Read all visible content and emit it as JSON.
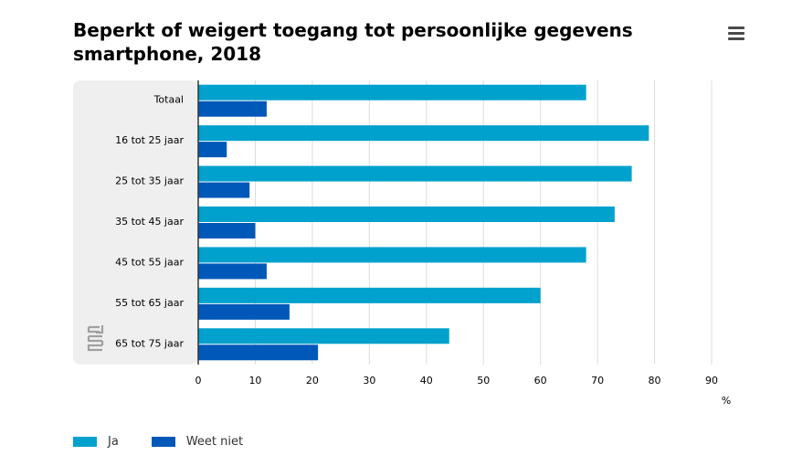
{
  "chart_data": {
    "type": "bar",
    "orientation": "horizontal",
    "title": "Beperkt of weigert toegang tot persoonlijke gegevens smartphone, 2018",
    "categories": [
      "Totaal",
      "16 tot 25 jaar",
      "25 tot 35 jaar",
      "35 tot 45 jaar",
      "45 tot 55 jaar",
      "55 tot 65 jaar",
      "65 tot 75 jaar"
    ],
    "series": [
      {
        "name": "Ja",
        "color": "#00a1cd",
        "values": [
          68,
          79,
          76,
          73,
          68,
          60,
          44
        ]
      },
      {
        "name": "Weet niet",
        "color": "#0058b8",
        "values": [
          12,
          5,
          9,
          10,
          12,
          16,
          21
        ]
      }
    ],
    "xlim": [
      0,
      90
    ],
    "xticks": [
      0,
      10,
      20,
      30,
      40,
      50,
      60,
      70,
      80,
      90
    ],
    "xlabel": "%",
    "grid": true,
    "legend": "bottom-left"
  },
  "header": {
    "title_line1": "Beperkt of weigert toegang tot persoonlijke gegevens",
    "title_line2": "smartphone, 2018",
    "menu_icon": "hamburger-menu-icon"
  },
  "branding": {
    "logo_icon": "cbs-logo-icon",
    "logo_color": "#a0a0a0"
  }
}
